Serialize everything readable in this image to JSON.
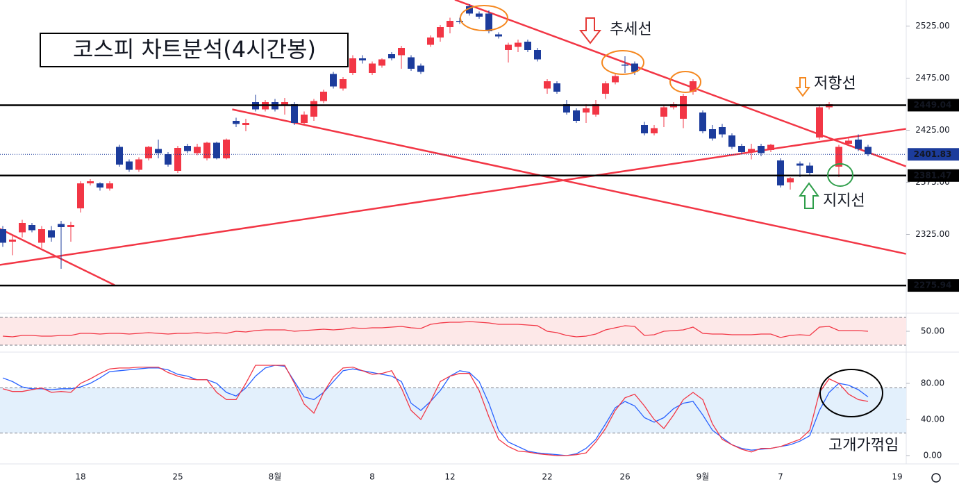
{
  "chart_data": [
    {
      "type": "candlestick",
      "title": "코스피 차트분석(4시간봉)",
      "categories": [
        null,
        null,
        null,
        null,
        null,
        null,
        null,
        null,
        "18",
        null,
        null,
        null,
        null,
        null,
        null,
        null,
        null,
        null,
        "25",
        null,
        null,
        null,
        null,
        null,
        null,
        null,
        null,
        null,
        "8월",
        null,
        null,
        null,
        null,
        null,
        null,
        null,
        null,
        null,
        "8",
        null,
        null,
        null,
        null,
        null,
        null,
        null,
        "12",
        null,
        null,
        null,
        null,
        null,
        null,
        null,
        null,
        null,
        "22",
        null,
        null,
        null,
        null,
        null,
        null,
        null,
        "26",
        null,
        null,
        null,
        null,
        null,
        null,
        null,
        "9월",
        null,
        null,
        null,
        null,
        null,
        null,
        null,
        "7",
        null,
        null,
        null,
        null,
        null,
        null,
        null,
        null,
        null,
        null,
        null,
        "19"
      ],
      "open": [
        2330,
        2318,
        2327,
        2334,
        2317,
        2329,
        2335,
        2332,
        2350,
        2374,
        2374,
        2369,
        2409,
        2395,
        2387,
        2398,
        2407,
        2402,
        2386,
        2410,
        2403,
        2398,
        2413,
        2398,
        2434,
        2430,
        2452,
        2445,
        2452,
        2449,
        2450,
        2432,
        2438,
        2453,
        2479,
        2465,
        2480,
        2494,
        2480,
        2487,
        2498,
        2497,
        2495,
        2487,
        2507,
        2514,
        2524,
        2530,
        2544,
        2537,
        2537,
        2517,
        2502,
        2505,
        2510,
        2502,
        2465,
        2470,
        2450,
        2444,
        2442,
        2440,
        2460,
        2471,
        2488,
        2489,
        2430,
        2422,
        2438,
        2447,
        2436,
        2462,
        2442,
        2426,
        2428,
        2420,
        2410,
        2404,
        2410,
        2406,
        2396,
        2375,
        2393,
        2391,
        2418,
        2447,
        2390,
        2412,
        2416,
        2409,
        null,
        null,
        null
      ],
      "high": [
        2333,
        2325,
        2339,
        2336,
        2333,
        2333,
        2338,
        2337,
        2376,
        2378,
        2375,
        2376,
        2411,
        2397,
        2399,
        2410,
        2416,
        2404,
        2410,
        2412,
        2412,
        2414,
        2414,
        2417,
        2437,
        2436,
        2459,
        2454,
        2455,
        2456,
        2452,
        2443,
        2455,
        2464,
        2481,
        2476,
        2497,
        2497,
        2491,
        2494,
        2500,
        2506,
        2497,
        2489,
        2516,
        2526,
        2533,
        2533,
        2546,
        2539,
        2540,
        2519,
        2509,
        2512,
        2512,
        2504,
        2474,
        2472,
        2454,
        2446,
        2450,
        2454,
        2472,
        2480,
        2496,
        2491,
        2433,
        2430,
        2449,
        2452,
        2460,
        2474,
        2444,
        2430,
        2431,
        2422,
        2412,
        2412,
        2412,
        2412,
        2398,
        2380,
        2395,
        2394,
        2449,
        2452,
        2411,
        2418,
        2421,
        2411,
        null,
        null,
        null
      ],
      "low": [
        2313,
        2305,
        2322,
        2327,
        2312,
        2318,
        2292,
        2318,
        2346,
        2372,
        2367,
        2367,
        2390,
        2385,
        2385,
        2396,
        2398,
        2390,
        2384,
        2403,
        2401,
        2396,
        2397,
        2397,
        2428,
        2424,
        2443,
        2443,
        2443,
        2440,
        2430,
        2430,
        2434,
        2451,
        2465,
        2463,
        2478,
        2489,
        2478,
        2485,
        2492,
        2484,
        2482,
        2479,
        2505,
        2510,
        2518,
        2527,
        2535,
        2532,
        2518,
        2513,
        2490,
        2500,
        2500,
        2491,
        2460,
        2460,
        2440,
        2432,
        2432,
        2438,
        2455,
        2469,
        2480,
        2478,
        2420,
        2420,
        2428,
        2445,
        2427,
        2459,
        2422,
        2415,
        2418,
        2407,
        2402,
        2397,
        2400,
        2404,
        2370,
        2368,
        2380,
        2382,
        2416,
        2445,
        2380,
        2410,
        2405,
        2400,
        null,
        null,
        null
      ],
      "close": [
        2317,
        2320,
        2336,
        2329,
        2330,
        2322,
        2332,
        2334,
        2374,
        2376,
        2370,
        2374,
        2392,
        2387,
        2397,
        2409,
        2403,
        2392,
        2408,
        2405,
        2409,
        2413,
        2398,
        2416,
        2431,
        2432,
        2445,
        2452,
        2445,
        2452,
        2432,
        2440,
        2453,
        2462,
        2467,
        2474,
        2494,
        2492,
        2489,
        2493,
        2494,
        2504,
        2484,
        2481,
        2514,
        2524,
        2530,
        2529,
        2537,
        2534,
        2520,
        2515,
        2507,
        2509,
        2502,
        2493,
        2472,
        2462,
        2442,
        2434,
        2446,
        2450,
        2470,
        2477,
        2487,
        2481,
        2422,
        2427,
        2447,
        2450,
        2458,
        2472,
        2424,
        2417,
        2421,
        2409,
        2404,
        2407,
        2403,
        2411,
        2372,
        2379,
        2391,
        2384,
        2447,
        2450,
        2409,
        2415,
        2407,
        2402,
        null,
        null,
        null
      ],
      "up_color": "#f23645",
      "down_color": "#1c3c9c",
      "ylim": [
        2250,
        2550
      ],
      "yticks": [
        {
          "value": 2325,
          "label": "2325.00"
        },
        {
          "value": 2375,
          "label": "2375.00"
        },
        {
          "value": 2425,
          "label": "2425.00"
        },
        {
          "value": 2475,
          "label": "2475.00"
        },
        {
          "value": 2525,
          "label": "2525.00"
        }
      ],
      "hlines": [
        {
          "value": 2449.04,
          "color": "#000000"
        },
        {
          "value": 2381.47,
          "color": "#000000"
        },
        {
          "value": 2275.94,
          "color": "#000000"
        }
      ],
      "last_price": {
        "value": 2401.83,
        "color": "#1c3c9c"
      },
      "trendlines": [
        {
          "x": [
            -0.3,
            11.5
          ],
          "y": [
            2330.3,
            2276.3
          ],
          "color": "#f23645"
        },
        {
          "x": [
            46.5,
            92.9
          ],
          "y": [
            2550.3,
            2390.3
          ],
          "color": "#f23645"
        },
        {
          "x": [
            -0.3,
            92.9
          ],
          "y": [
            2295.7,
            2426.3
          ],
          "color": "#f23645"
        },
        {
          "x": [
            23.6,
            92.9
          ],
          "y": [
            2445,
            2306.3
          ],
          "color": "#f23645"
        }
      ],
      "annotations": [
        {
          "text": "추세선",
          "color": "#e53935"
        },
        {
          "text": "저항선",
          "color": "#f5881f"
        },
        {
          "text": "지지선",
          "color": "#2e9e4a"
        }
      ]
    },
    {
      "type": "line",
      "series": [
        {
          "color": "#f23645",
          "values": [
            43,
            42,
            44,
            44,
            43,
            43,
            44,
            44,
            47,
            47,
            46,
            47,
            47,
            46,
            47,
            48,
            47,
            46,
            47,
            47,
            48,
            47,
            48,
            47,
            50,
            49,
            51,
            52,
            52,
            52,
            50,
            51,
            52,
            53,
            52,
            53,
            55,
            54,
            55,
            55,
            56,
            57,
            55,
            54,
            60,
            62,
            63,
            63,
            64,
            63,
            62,
            60,
            60,
            60,
            59,
            58,
            50,
            48,
            44,
            42,
            43,
            46,
            52,
            55,
            58,
            57,
            44,
            45,
            50,
            51,
            52,
            56,
            47,
            46,
            46,
            45,
            45,
            45,
            46,
            46,
            41,
            44,
            45,
            44,
            56,
            57,
            51,
            51,
            51,
            50
          ]
        }
      ],
      "ylim": [
        25,
        75
      ],
      "yticks": [
        {
          "value": 50,
          "label": "50.00"
        }
      ],
      "bands": [
        30,
        70
      ],
      "band_color": "#fde8e8"
    },
    {
      "type": "line",
      "series": [
        {
          "color": "#2962ff",
          "values": [
            86,
            82,
            76,
            74,
            74,
            73,
            74,
            74,
            76,
            80,
            86,
            93,
            94,
            95,
            96,
            97,
            97,
            95,
            90,
            88,
            84,
            84,
            80,
            70,
            66,
            75,
            88,
            97,
            100,
            99,
            82,
            65,
            62,
            70,
            82,
            94,
            96,
            94,
            92,
            90,
            88,
            82,
            58,
            50,
            60,
            72,
            88,
            94,
            92,
            82,
            58,
            28,
            15,
            10,
            5,
            3,
            2,
            1,
            0,
            2,
            8,
            18,
            35,
            53,
            60,
            55,
            42,
            37,
            42,
            52,
            58,
            60,
            45,
            28,
            20,
            12,
            8,
            6,
            7,
            8,
            10,
            12,
            16,
            22,
            50,
            70,
            80,
            78,
            73,
            65
          ]
        },
        {
          "color": "#f23645",
          "values": [
            74,
            71,
            71,
            73,
            75,
            70,
            71,
            70,
            80,
            85,
            91,
            96,
            97,
            97,
            98,
            98,
            98,
            92,
            88,
            85,
            84,
            84,
            70,
            62,
            62,
            80,
            100,
            100,
            100,
            100,
            80,
            57,
            47,
            70,
            87,
            97,
            98,
            94,
            90,
            91,
            94,
            75,
            50,
            40,
            60,
            82,
            88,
            91,
            91,
            72,
            43,
            18,
            10,
            5,
            4,
            2,
            1,
            0,
            0,
            1,
            3,
            15,
            30,
            50,
            64,
            68,
            55,
            40,
            30,
            45,
            62,
            70,
            62,
            35,
            18,
            12,
            7,
            4,
            8,
            8,
            10,
            14,
            18,
            28,
            70,
            85,
            80,
            68,
            62,
            60
          ]
        }
      ],
      "ylim": [
        -5,
        110
      ],
      "yticks": [
        {
          "value": 0,
          "label": "0.00"
        },
        {
          "value": 40,
          "label": "40.00"
        },
        {
          "value": 80,
          "label": "80.00"
        }
      ],
      "bands": [
        25,
        75
      ],
      "band_color": "#e3f0fc",
      "annotations": [
        {
          "text": "고개가꺾임",
          "color": "#000000"
        }
      ]
    }
  ]
}
